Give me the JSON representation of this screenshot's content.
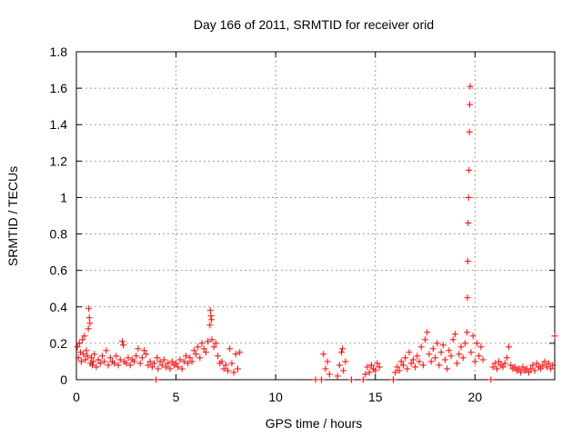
{
  "chart_data": {
    "type": "scatter",
    "title": "Day 166 of 2011, SRMTID for receiver orid",
    "xlabel": "GPS time / hours",
    "ylabel": "SRMTID / TECUs",
    "xlim": [
      0,
      24
    ],
    "ylim": [
      0,
      1.8
    ],
    "xticks": [
      0,
      5,
      10,
      15,
      20
    ],
    "xtick_labels": [
      "0",
      "5",
      "10",
      "15",
      "20"
    ],
    "yticks": [
      0,
      0.2,
      0.4,
      0.6,
      0.8,
      1,
      1.2,
      1.4,
      1.6,
      1.8
    ],
    "ytick_labels": [
      "0",
      "0.2",
      "0.4",
      "0.6",
      "0.8",
      "1",
      "1.2",
      "1.4",
      "1.6",
      "1.8"
    ],
    "grid": true,
    "marker": "+",
    "color": "#ff0000",
    "series": [
      {
        "name": "SRMTID",
        "points": [
          [
            0.05,
            0.18
          ],
          [
            0.1,
            0.12
          ],
          [
            0.15,
            0.2
          ],
          [
            0.2,
            0.15
          ],
          [
            0.25,
            0.1
          ],
          [
            0.3,
            0.22
          ],
          [
            0.35,
            0.14
          ],
          [
            0.4,
            0.24
          ],
          [
            0.45,
            0.11
          ],
          [
            0.5,
            0.16
          ],
          [
            0.55,
            0.13
          ],
          [
            0.6,
            0.28
          ],
          [
            0.62,
            0.39
          ],
          [
            0.65,
            0.34
          ],
          [
            0.68,
            0.31
          ],
          [
            0.7,
            0.09
          ],
          [
            0.75,
            0.12
          ],
          [
            0.8,
            0.08
          ],
          [
            0.85,
            0.1
          ],
          [
            0.9,
            0.14
          ],
          [
            1.0,
            0.07
          ],
          [
            1.1,
            0.11
          ],
          [
            1.2,
            0.09
          ],
          [
            1.3,
            0.13
          ],
          [
            1.4,
            0.1
          ],
          [
            1.5,
            0.16
          ],
          [
            1.6,
            0.08
          ],
          [
            1.7,
            0.12
          ],
          [
            1.8,
            0.1
          ],
          [
            1.9,
            0.09
          ],
          [
            2.0,
            0.13
          ],
          [
            2.1,
            0.08
          ],
          [
            2.2,
            0.11
          ],
          [
            2.3,
            0.21
          ],
          [
            2.35,
            0.19
          ],
          [
            2.4,
            0.1
          ],
          [
            2.5,
            0.09
          ],
          [
            2.6,
            0.12
          ],
          [
            2.7,
            0.08
          ],
          [
            2.8,
            0.11
          ],
          [
            2.9,
            0.1
          ],
          [
            3.0,
            0.13
          ],
          [
            3.1,
            0.17
          ],
          [
            3.2,
            0.09
          ],
          [
            3.3,
            0.12
          ],
          [
            3.4,
            0.16
          ],
          [
            3.5,
            0.14
          ],
          [
            3.6,
            0.08
          ],
          [
            3.7,
            0.1
          ],
          [
            3.8,
            0.07
          ],
          [
            3.9,
            0.09
          ],
          [
            4.0,
            0.0
          ],
          [
            4.05,
            0.12
          ],
          [
            4.1,
            0.06
          ],
          [
            4.2,
            0.1
          ],
          [
            4.3,
            0.08
          ],
          [
            4.4,
            0.11
          ],
          [
            4.5,
            0.07
          ],
          [
            4.6,
            0.09
          ],
          [
            4.7,
            0.06
          ],
          [
            4.8,
            0.1
          ],
          [
            4.9,
            0.08
          ],
          [
            5.0,
            0.09
          ],
          [
            5.1,
            0.07
          ],
          [
            5.2,
            0.11
          ],
          [
            5.3,
            0.06
          ],
          [
            5.4,
            0.1
          ],
          [
            5.5,
            0.13
          ],
          [
            5.6,
            0.09
          ],
          [
            5.7,
            0.12
          ],
          [
            5.8,
            0.1
          ],
          [
            5.9,
            0.16
          ],
          [
            6.0,
            0.14
          ],
          [
            6.1,
            0.18
          ],
          [
            6.2,
            0.12
          ],
          [
            6.3,
            0.2
          ],
          [
            6.4,
            0.17
          ],
          [
            6.5,
            0.15
          ],
          [
            6.6,
            0.21
          ],
          [
            6.7,
            0.3
          ],
          [
            6.72,
            0.38
          ],
          [
            6.75,
            0.35
          ],
          [
            6.78,
            0.33
          ],
          [
            6.8,
            0.22
          ],
          [
            6.9,
            0.18
          ],
          [
            7.0,
            0.2
          ],
          [
            7.1,
            0.13
          ],
          [
            7.2,
            0.09
          ],
          [
            7.3,
            0.1
          ],
          [
            7.4,
            0.06
          ],
          [
            7.5,
            0.08
          ],
          [
            7.6,
            0.05
          ],
          [
            7.7,
            0.17
          ],
          [
            7.8,
            0.09
          ],
          [
            7.9,
            0.04
          ],
          [
            8.0,
            0.14
          ],
          [
            8.1,
            0.06
          ],
          [
            8.2,
            0.15
          ],
          [
            12.0,
            0.0
          ],
          [
            12.3,
            0.0
          ],
          [
            12.4,
            0.14
          ],
          [
            12.5,
            0.06
          ],
          [
            12.6,
            0.1
          ],
          [
            12.7,
            0.03
          ],
          [
            13.1,
            0.02
          ],
          [
            13.2,
            0.08
          ],
          [
            13.3,
            0.15
          ],
          [
            13.35,
            0.17
          ],
          [
            13.4,
            0.05
          ],
          [
            13.5,
            0.1
          ],
          [
            13.8,
            0.0
          ],
          [
            14.4,
            0.0
          ],
          [
            14.5,
            0.03
          ],
          [
            14.6,
            0.07
          ],
          [
            14.7,
            0.04
          ],
          [
            14.8,
            0.08
          ],
          [
            14.9,
            0.06
          ],
          [
            15.0,
            0.05
          ],
          [
            15.1,
            0.09
          ],
          [
            15.2,
            0.07
          ],
          [
            15.9,
            0.0
          ],
          [
            16.0,
            0.04
          ],
          [
            16.1,
            0.07
          ],
          [
            16.2,
            0.05
          ],
          [
            16.3,
            0.1
          ],
          [
            16.4,
            0.08
          ],
          [
            16.5,
            0.12
          ],
          [
            16.6,
            0.06
          ],
          [
            16.7,
            0.15
          ],
          [
            16.8,
            0.09
          ],
          [
            16.9,
            0.11
          ],
          [
            17.0,
            0.07
          ],
          [
            17.1,
            0.13
          ],
          [
            17.2,
            0.1
          ],
          [
            17.3,
            0.18
          ],
          [
            17.4,
            0.08
          ],
          [
            17.5,
            0.22
          ],
          [
            17.6,
            0.26
          ],
          [
            17.7,
            0.14
          ],
          [
            17.8,
            0.1
          ],
          [
            17.9,
            0.17
          ],
          [
            18.0,
            0.12
          ],
          [
            18.1,
            0.2
          ],
          [
            18.2,
            0.08
          ],
          [
            18.3,
            0.15
          ],
          [
            18.4,
            0.19
          ],
          [
            18.5,
            0.11
          ],
          [
            18.6,
            0.06
          ],
          [
            18.7,
            0.16
          ],
          [
            18.8,
            0.13
          ],
          [
            18.9,
            0.22
          ],
          [
            19.0,
            0.25
          ],
          [
            19.1,
            0.09
          ],
          [
            19.2,
            0.14
          ],
          [
            19.3,
            0.18
          ],
          [
            19.4,
            0.12
          ],
          [
            19.5,
            0.2
          ],
          [
            19.6,
            0.26
          ],
          [
            19.62,
            0.45
          ],
          [
            19.64,
            0.65
          ],
          [
            19.66,
            0.86
          ],
          [
            19.68,
            1.0
          ],
          [
            19.7,
            1.15
          ],
          [
            19.72,
            1.36
          ],
          [
            19.74,
            1.51
          ],
          [
            19.76,
            1.61
          ],
          [
            19.8,
            0.15
          ],
          [
            19.9,
            0.24
          ],
          [
            20.0,
            0.1
          ],
          [
            20.1,
            0.2
          ],
          [
            20.2,
            0.13
          ],
          [
            20.3,
            0.18
          ],
          [
            20.4,
            0.11
          ],
          [
            20.8,
            0.0
          ],
          [
            20.9,
            0.07
          ],
          [
            21.0,
            0.09
          ],
          [
            21.1,
            0.06
          ],
          [
            21.2,
            0.1
          ],
          [
            21.3,
            0.08
          ],
          [
            21.4,
            0.07
          ],
          [
            21.5,
            0.09
          ],
          [
            21.6,
            0.12
          ],
          [
            21.7,
            0.18
          ],
          [
            21.8,
            0.08
          ],
          [
            21.9,
            0.06
          ],
          [
            22.0,
            0.07
          ],
          [
            22.1,
            0.05
          ],
          [
            22.2,
            0.06
          ],
          [
            22.3,
            0.04
          ],
          [
            22.4,
            0.07
          ],
          [
            22.5,
            0.05
          ],
          [
            22.6,
            0.06
          ],
          [
            22.7,
            0.04
          ],
          [
            22.8,
            0.06
          ],
          [
            22.9,
            0.08
          ],
          [
            23.0,
            0.05
          ],
          [
            23.1,
            0.09
          ],
          [
            23.2,
            0.07
          ],
          [
            23.3,
            0.06
          ],
          [
            23.4,
            0.08
          ],
          [
            23.5,
            0.1
          ],
          [
            23.6,
            0.07
          ],
          [
            23.7,
            0.09
          ],
          [
            23.8,
            0.06
          ],
          [
            23.9,
            0.08
          ],
          [
            24.0,
            0.24
          ]
        ]
      }
    ]
  }
}
